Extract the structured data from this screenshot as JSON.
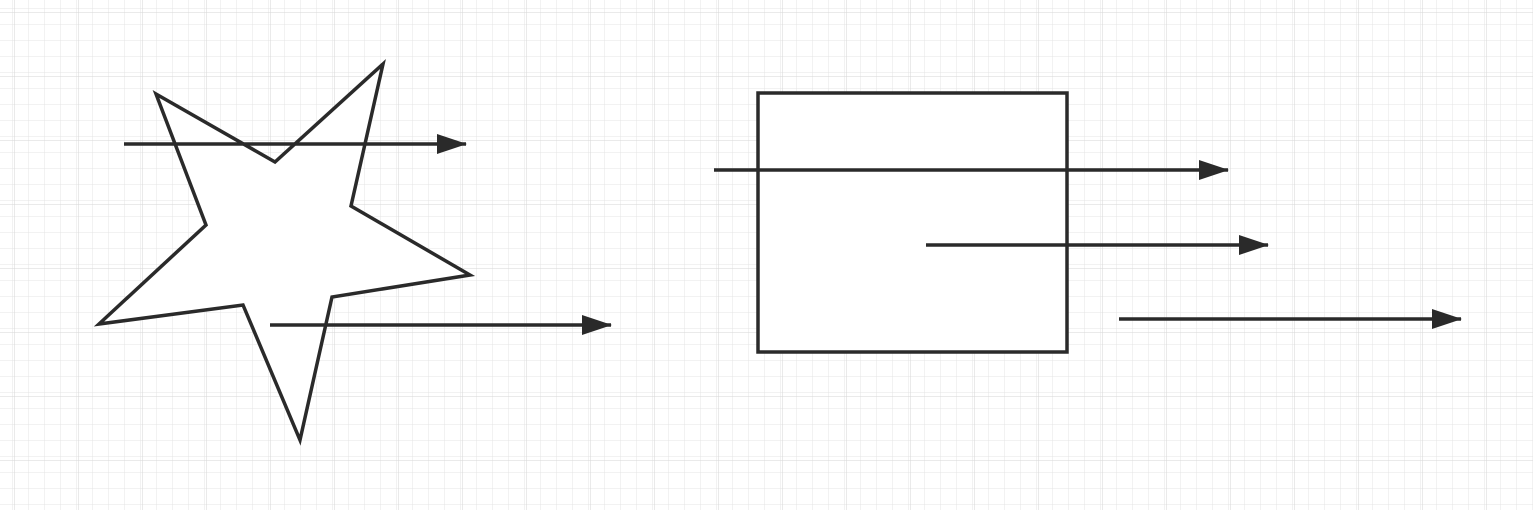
{
  "canvas": {
    "background_color": "#ffffff",
    "grid_color": "#e4e4e4",
    "grid_major_color": "#d6d6d6",
    "stroke_color": "#2a2a2a"
  },
  "shapes": [
    {
      "kind": "star",
      "name": "star-shape"
    },
    {
      "kind": "rectangle",
      "name": "rectangle-shape"
    }
  ],
  "connectors": [
    {
      "kind": "arrow",
      "name": "arrow-over-star-top"
    },
    {
      "kind": "arrow",
      "name": "arrow-over-star-bottom"
    },
    {
      "kind": "arrow",
      "name": "arrow-through-rectangle"
    },
    {
      "kind": "arrow",
      "name": "arrow-from-rectangle-center"
    },
    {
      "kind": "arrow",
      "name": "arrow-outside-rectangle"
    }
  ]
}
